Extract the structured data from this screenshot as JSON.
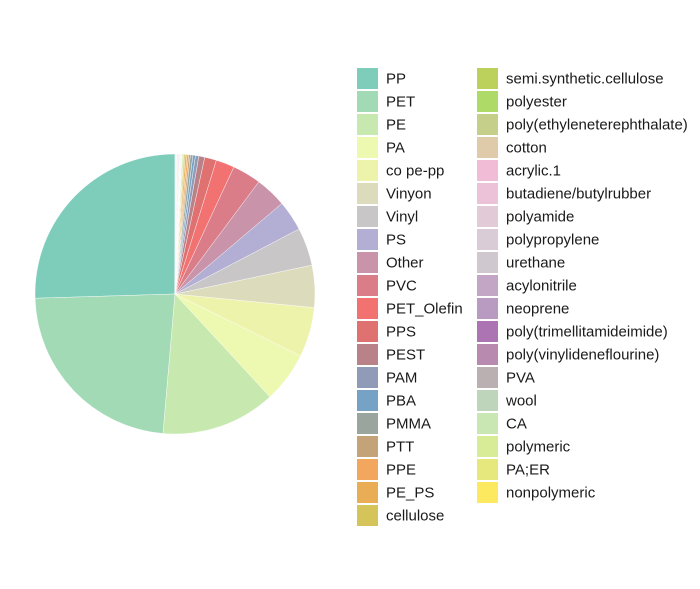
{
  "chart_data": {
    "type": "pie",
    "title": "",
    "legend_position": "right",
    "legend_columns": 2,
    "start": "12 o'clock",
    "direction": "counterclockwise",
    "slices": [
      {
        "label": "PP",
        "value": 26.2,
        "color": "#7ecdbb"
      },
      {
        "label": "PET",
        "value": 23.8,
        "color": "#a1dab4"
      },
      {
        "label": "PE",
        "value": 13.6,
        "color": "#c7e9b0"
      },
      {
        "label": "PA",
        "value": 6.0,
        "color": "#edf8b1"
      },
      {
        "label": "co pe-pp",
        "value": 5.9,
        "color": "#eef3ac"
      },
      {
        "label": "Vinyon",
        "value": 5.0,
        "color": "#dcdcbc"
      },
      {
        "label": "Vinyl",
        "value": 4.5,
        "color": "#c8c6c6"
      },
      {
        "label": "PS",
        "value": 3.6,
        "color": "#b2aed4"
      },
      {
        "label": "Other",
        "value": 3.7,
        "color": "#c994aa"
      },
      {
        "label": "PVC",
        "value": 3.4,
        "color": "#db7d89"
      },
      {
        "label": "PET_Olefin",
        "value": 2.2,
        "color": "#f27272"
      },
      {
        "label": "PPS",
        "value": 1.4,
        "color": "#e07171"
      },
      {
        "label": "PEST",
        "value": 0.7,
        "color": "#b98289"
      },
      {
        "label": "PAM",
        "value": 0.4,
        "color": "#8f9bb7"
      },
      {
        "label": "PBA",
        "value": 0.3,
        "color": "#76a3c5"
      },
      {
        "label": "PMMA",
        "value": 0.3,
        "color": "#9aa59d"
      },
      {
        "label": "PTT",
        "value": 0.2,
        "color": "#c4a378"
      },
      {
        "label": "PPE",
        "value": 0.2,
        "color": "#f3a65d"
      },
      {
        "label": "PE_PS",
        "value": 0.2,
        "color": "#e8ad55"
      },
      {
        "label": "cellulose",
        "value": 0.15,
        "color": "#d4c45a"
      },
      {
        "label": "semi.synthetic.cellulose",
        "value": 0.1,
        "color": "#bcd15c"
      },
      {
        "label": "polyester",
        "value": 0.1,
        "color": "#aedb67"
      },
      {
        "label": "poly(ethyleneterephthalate)",
        "value": 0.05,
        "color": "#c6cf8a"
      },
      {
        "label": "cotton",
        "value": 0.05,
        "color": "#dfcaa9"
      },
      {
        "label": "acrylic.1",
        "value": 0.05,
        "color": "#f1bcd6"
      },
      {
        "label": "butadiene/butylrubber",
        "value": 0.05,
        "color": "#ecc2d9"
      },
      {
        "label": "polyamide",
        "value": 0.05,
        "color": "#e3cad7"
      },
      {
        "label": "polypropylene",
        "value": 0.05,
        "color": "#d9ccd6"
      },
      {
        "label": "urethane",
        "value": 0.05,
        "color": "#cfc8cf"
      },
      {
        "label": "acylonitrile",
        "value": 0.05,
        "color": "#c3a6c5"
      },
      {
        "label": "neoprene",
        "value": 0.05,
        "color": "#b99ac1"
      },
      {
        "label": "poly(trimellitamideimide)",
        "value": 0.05,
        "color": "#ad74b3"
      },
      {
        "label": "poly(vinylideneflourine)",
        "value": 0.05,
        "color": "#b98ab0"
      },
      {
        "label": "PVA",
        "value": 0.05,
        "color": "#bab0b2"
      },
      {
        "label": "wool",
        "value": 0.05,
        "color": "#bed5bc"
      },
      {
        "label": "CA",
        "value": 0.05,
        "color": "#c9e7b3"
      },
      {
        "label": "polymeric",
        "value": 0.05,
        "color": "#d8eb97"
      },
      {
        "label": "PA;ER",
        "value": 0.05,
        "color": "#e6e77d"
      },
      {
        "label": "nonpolymeric",
        "value": 0.05,
        "color": "#fde95f"
      }
    ]
  }
}
